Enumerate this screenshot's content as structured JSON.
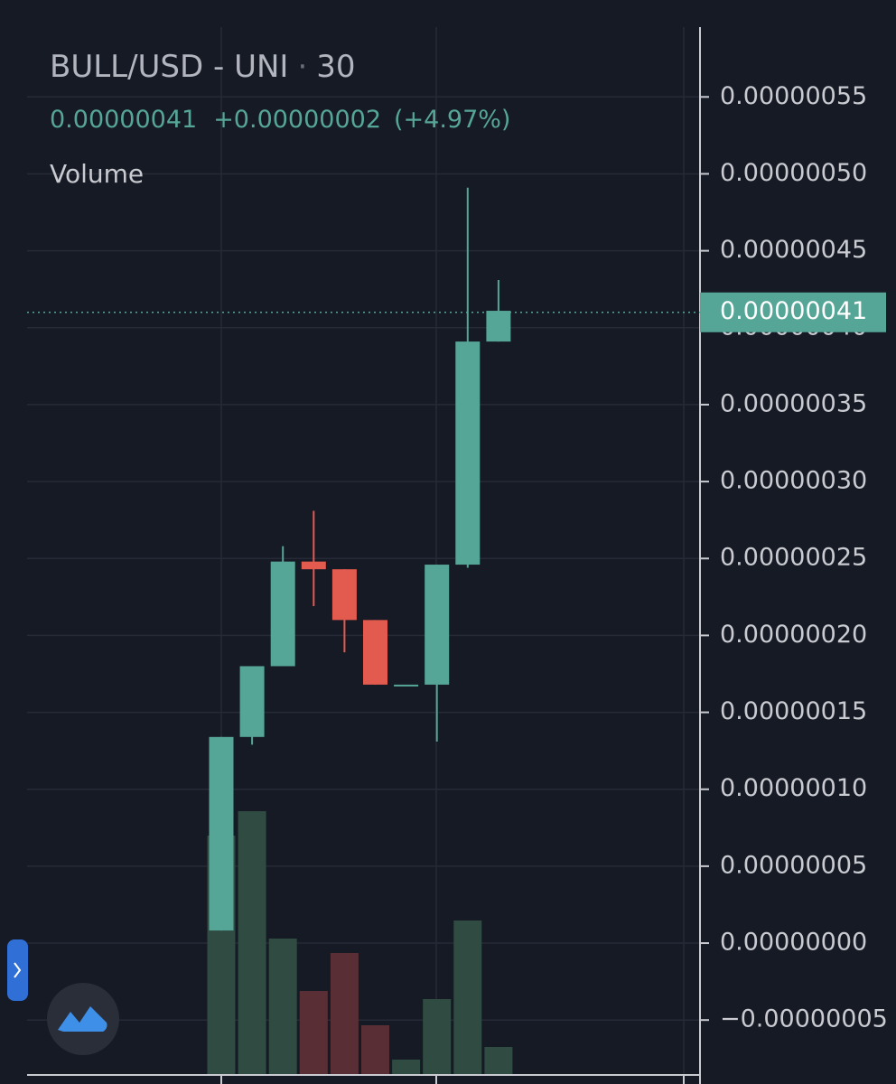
{
  "header": {
    "symbol": "BULL/USD - UNI",
    "separator": "·",
    "interval": "30",
    "last": "0.00000041",
    "change": "+0.00000002",
    "change_pct": "(+4.97%)",
    "volume_label": "Volume"
  },
  "chart_data": {
    "type": "candlestick",
    "open": [
      8.2e-09,
      1.34e-07,
      1.8e-07,
      2.48e-07,
      2.43e-07,
      2.1e-07,
      1.68e-07,
      1.68e-07,
      2.46e-07,
      3.91e-07
    ],
    "high": [
      1.34e-07,
      1.8e-07,
      2.58e-07,
      2.81e-07,
      2.43e-07,
      2.1e-07,
      1.68e-07,
      2.46e-07,
      4.91e-07,
      4.31e-07
    ],
    "low": [
      8.2e-09,
      1.29e-07,
      1.8e-07,
      2.19e-07,
      1.89e-07,
      1.68e-07,
      1.68e-07,
      1.31e-07,
      2.44e-07,
      3.91e-07
    ],
    "close": [
      1.34e-07,
      1.8e-07,
      2.48e-07,
      2.43e-07,
      2.1e-07,
      1.68e-07,
      1.68e-07,
      2.46e-07,
      3.91e-07,
      4.11e-07
    ],
    "volume": [
      265,
      292,
      151,
      93,
      135,
      55,
      17,
      84,
      171,
      31
    ],
    "up_color": "#56a697",
    "down_color": "#e35a4f",
    "volume_up_color": "#2f4b42",
    "volume_down_color": "#5a2e35",
    "ylim": [
      -8.57e-08,
      6.13e-07
    ],
    "yticks": [
      {
        "value": 5.5e-07,
        "label": "0.00000055"
      },
      {
        "value": 5e-07,
        "label": "0.00000050"
      },
      {
        "value": 4.5e-07,
        "label": "0.00000045"
      },
      {
        "value": 4e-07,
        "label": "0.00000040"
      },
      {
        "value": 3.5e-07,
        "label": "0.00000035"
      },
      {
        "value": 3e-07,
        "label": "0.00000030"
      },
      {
        "value": 2.5e-07,
        "label": "0.00000025"
      },
      {
        "value": 2e-07,
        "label": "0.00000020"
      },
      {
        "value": 1.5e-07,
        "label": "0.00000015"
      },
      {
        "value": 1e-07,
        "label": "0.00000010"
      },
      {
        "value": 5e-08,
        "label": "0.00000005"
      },
      {
        "value": 0,
        "label": "0.00000000"
      },
      {
        "value": -5e-08,
        "label": "−0.00000005"
      }
    ],
    "last_price": {
      "value": 4.1e-07,
      "label": "0.00000041"
    },
    "grid": true
  }
}
